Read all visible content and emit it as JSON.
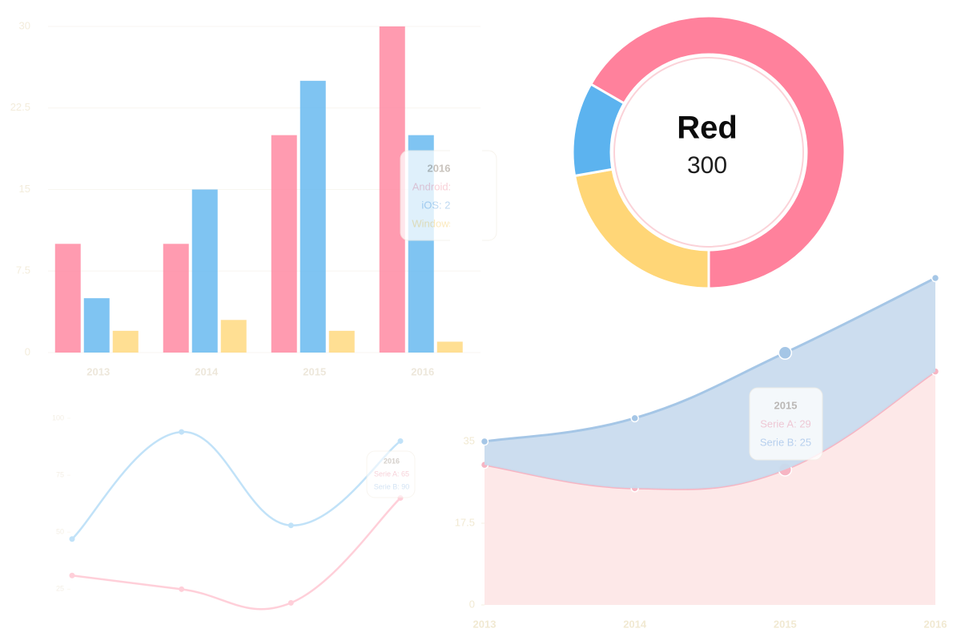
{
  "chart_data": [
    {
      "type": "bar",
      "categories": [
        "2013",
        "2014",
        "2015",
        "2016"
      ],
      "series": [
        {
          "name": "Android",
          "color": "#ff6384",
          "values": [
            10,
            10,
            20,
            30
          ]
        },
        {
          "name": "iOS",
          "color": "#36a2eb",
          "values": [
            5,
            15,
            25,
            20
          ]
        },
        {
          "name": "Windows",
          "color": "#ffcd56",
          "values": [
            2,
            3,
            2,
            1
          ]
        }
      ],
      "ylim": [
        0,
        30
      ],
      "yticks": [
        0,
        7.5,
        15,
        22.5,
        30
      ],
      "grid": true,
      "tooltip": {
        "title": "2016",
        "lines": [
          "Android: 30",
          "iOS: 20",
          "Windows: 1"
        ]
      }
    },
    {
      "type": "doughnut",
      "categories": [
        "Red",
        null,
        null
      ],
      "values": [
        300,
        100,
        50
      ],
      "colors": [
        "#ff6384",
        "#ffcd56",
        "#36a2eb"
      ]
    },
    {
      "type": "line",
      "categories": [
        null,
        null,
        null,
        null
      ],
      "series": [
        {
          "name": "Serie A",
          "color": "#ff6384",
          "values": [
            31,
            25,
            19,
            65
          ]
        },
        {
          "name": "Serie B",
          "color": "#36a2eb",
          "values": [
            47,
            94,
            53,
            90
          ]
        }
      ],
      "ylim": [
        10,
        100
      ],
      "yticks": [
        25,
        50,
        75,
        100
      ],
      "tooltip": {
        "title": "2016",
        "lines": [
          "Serie A: 65",
          "Serie B: 90"
        ]
      }
    },
    {
      "type": "stacked-area",
      "categories": [
        "2013",
        "2014",
        "2015",
        "2016"
      ],
      "series": [
        {
          "name": "Serie A",
          "color": "#f5a3b5",
          "values": [
            30,
            25,
            29,
            50
          ]
        },
        {
          "name": "Serie B",
          "color": "#8fb8e0",
          "values": [
            5,
            15,
            25,
            20
          ]
        }
      ],
      "ylim": [
        0,
        70
      ],
      "yticks": [
        0,
        17.5,
        35
      ],
      "tooltip": {
        "title": "2015",
        "lines": [
          "Serie A: 29",
          "Serie B: 25"
        ]
      }
    }
  ]
}
